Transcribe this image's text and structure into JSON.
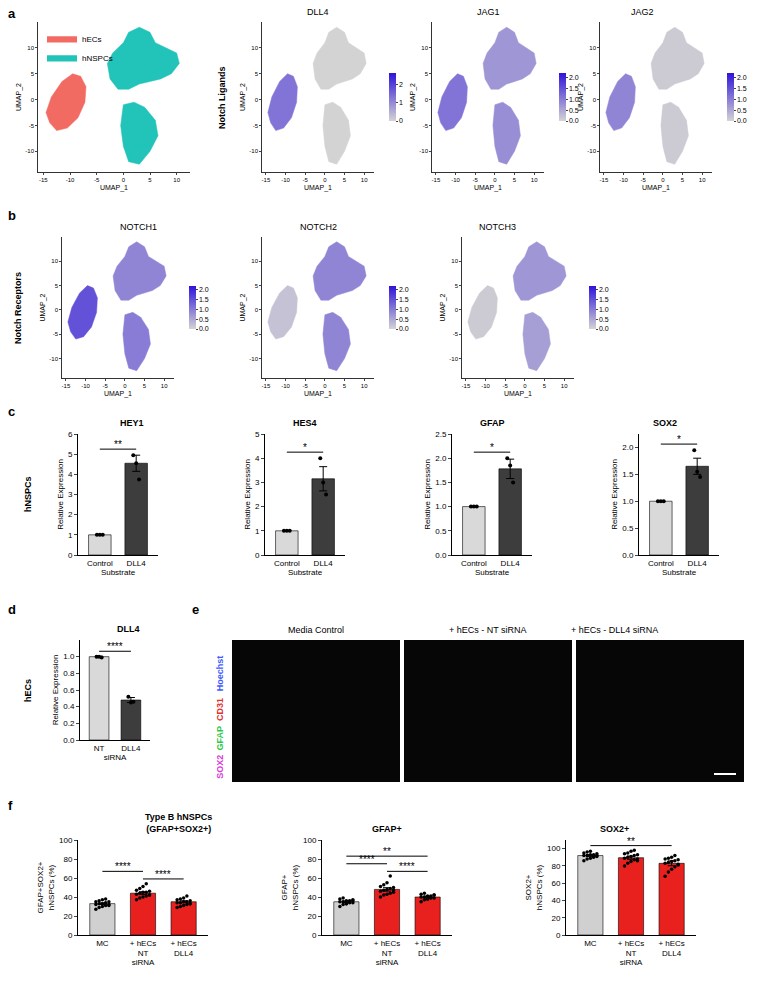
{
  "panels": [
    {
      "letter": "a",
      "label": "Notch Ligands"
    },
    {
      "letter": "b",
      "label": "Notch Receptors"
    },
    {
      "letter": "c",
      "label": "hNSPCs"
    },
    {
      "letter": "d",
      "label": "hECs"
    },
    {
      "letter": "e"
    },
    {
      "letter": "f"
    }
  ],
  "chart_data": [
    {
      "panel": "a",
      "type": "scatter",
      "x_label": "UMAP_1",
      "y_label": "UMAP_2",
      "xlim": [
        -16,
        12.5
      ],
      "xticks": [
        -15,
        -10,
        -5,
        0,
        5,
        10
      ],
      "ylim": [
        -14,
        15
      ],
      "yticks": [
        -10,
        -5,
        0,
        5,
        10
      ],
      "legend": "top-left",
      "series": [
        {
          "name": "hECs",
          "color": "#f26b63",
          "regions": [
            {
              "x": [
                -13.8,
                -12.5,
                -10.5,
                -8.5,
                -7.2,
                -7.0,
                -8.0,
                -9.5,
                -11.5,
                -13.5,
                -14.5,
                -13.8
              ],
              "y": [
                -4.5,
                -6.0,
                -5.5,
                -3.5,
                -0.5,
                2.5,
                4.5,
                5.0,
                3.5,
                0.5,
                -2.5,
                -4.5
              ]
            }
          ]
        },
        {
          "name": "hNSPCs",
          "color": "#22c3b8",
          "regions": [
            {
              "x": [
                -3,
                -2,
                0,
                1,
                3,
                5,
                6,
                8,
                10,
                10.5,
                9,
                7,
                5,
                3,
                1,
                -1,
                -2.5,
                -3
              ],
              "y": [
                7,
                9,
                11,
                13,
                14,
                13,
                11,
                10,
                9,
                7,
                5,
                4,
                3.5,
                3,
                2,
                2,
                4,
                7
              ]
            },
            {
              "x": [
                0,
                2,
                4,
                6,
                6.5,
                5,
                3,
                1,
                0,
                -0.5,
                0
              ],
              "y": [
                -1,
                -0.5,
                -1.5,
                -4,
                -7,
                -10,
                -12.5,
                -12,
                -9,
                -5,
                -1
              ]
            }
          ]
        }
      ]
    },
    {
      "panel": "a",
      "type": "feature",
      "title": "DLL4",
      "x_label": "UMAP_1",
      "y_label": "UMAP_2",
      "xlim": [
        -16,
        12.5
      ],
      "xticks": [
        -15,
        -10,
        -5,
        0,
        5,
        10
      ],
      "ylim": [
        -14,
        15
      ],
      "yticks": [
        -10,
        -5,
        0,
        5,
        10
      ],
      "values": [
        1.3,
        0,
        0
      ],
      "colorbar": {
        "range": [
          0,
          2.6
        ],
        "ticks": [
          0,
          1,
          2
        ]
      }
    },
    {
      "panel": "a",
      "type": "feature",
      "title": "JAG1",
      "x_label": "UMAP_1",
      "y_label": "UMAP_2",
      "xlim": [
        -16,
        12.5
      ],
      "xticks": [
        -15,
        -10,
        -5,
        0,
        5,
        10
      ],
      "ylim": [
        -14,
        15
      ],
      "yticks": [
        -10,
        -5,
        0,
        5,
        10
      ],
      "values": [
        1.1,
        0.7,
        0.8
      ],
      "colorbar": {
        "range": [
          0,
          2.2
        ],
        "ticks": [
          {
            "value": 0,
            "label": "0.0"
          },
          {
            "value": 0.5,
            "label": "0.5"
          },
          {
            "value": 1,
            "label": "1.0"
          },
          {
            "value": 1.5,
            "label": "1.5"
          },
          {
            "value": 2,
            "label": "2.0"
          }
        ]
      }
    },
    {
      "panel": "a",
      "type": "feature",
      "title": "JAG2",
      "x_label": "UMAP_1",
      "y_label": "UMAP_2",
      "xlim": [
        -16,
        12.5
      ],
      "xticks": [
        -15,
        -10,
        -5,
        0,
        5,
        10
      ],
      "ylim": [
        -14,
        15
      ],
      "yticks": [
        -10,
        -5,
        0,
        5,
        10
      ],
      "values": [
        0.9,
        0.1,
        0.1
      ],
      "colorbar": {
        "range": [
          0,
          2.2
        ],
        "ticks": [
          {
            "value": 0,
            "label": "0.0"
          },
          {
            "value": 0.5,
            "label": "0.5"
          },
          {
            "value": 1,
            "label": "1.0"
          },
          {
            "value": 1.5,
            "label": "1.5"
          },
          {
            "value": 2,
            "label": "2.0"
          }
        ]
      }
    },
    {
      "panel": "b",
      "type": "feature",
      "title": "NOTCH1",
      "x_label": "UMAP_1",
      "y_label": "UMAP_2",
      "xlim": [
        -16,
        12.5
      ],
      "xticks": [
        -15,
        -10,
        -5,
        0,
        5,
        10
      ],
      "ylim": [
        -14,
        15
      ],
      "yticks": [
        -10,
        -5,
        0,
        5,
        10
      ],
      "values": [
        1.5,
        0.9,
        1.0
      ],
      "colorbar": {
        "range": [
          0,
          2.2
        ],
        "ticks": [
          {
            "value": 0,
            "label": "0.0"
          },
          {
            "value": 0.5,
            "label": "0.5"
          },
          {
            "value": 1,
            "label": "1.0"
          },
          {
            "value": 1.5,
            "label": "1.5"
          },
          {
            "value": 2,
            "label": "2.0"
          }
        ]
      }
    },
    {
      "panel": "b",
      "type": "feature",
      "title": "NOTCH2",
      "x_label": "UMAP_1",
      "y_label": "UMAP_2",
      "xlim": [
        -16,
        12.5
      ],
      "xticks": [
        -15,
        -10,
        -5,
        0,
        5,
        10
      ],
      "ylim": [
        -14,
        15
      ],
      "yticks": [
        -10,
        -5,
        0,
        5,
        10
      ],
      "values": [
        0.2,
        0.9,
        0.9
      ],
      "colorbar": {
        "range": [
          0,
          2.2
        ],
        "ticks": [
          {
            "value": 0,
            "label": "0.0"
          },
          {
            "value": 0.5,
            "label": "0.5"
          },
          {
            "value": 1,
            "label": "1.0"
          },
          {
            "value": 1.5,
            "label": "1.5"
          },
          {
            "value": 2,
            "label": "2.0"
          }
        ]
      }
    },
    {
      "panel": "b",
      "type": "feature",
      "title": "NOTCH3",
      "x_label": "UMAP_1",
      "y_label": "UMAP_2",
      "xlim": [
        -16,
        12.5
      ],
      "xticks": [
        -15,
        -10,
        -5,
        0,
        5,
        10
      ],
      "ylim": [
        -14,
        15
      ],
      "yticks": [
        -10,
        -5,
        0,
        5,
        10
      ],
      "values": [
        0.1,
        0.7,
        0.6
      ],
      "colorbar": {
        "range": [
          0,
          2.2
        ],
        "ticks": [
          {
            "value": 0,
            "label": "0.0"
          },
          {
            "value": 0.5,
            "label": "0.5"
          },
          {
            "value": 1,
            "label": "1.0"
          },
          {
            "value": 1.5,
            "label": "1.5"
          },
          {
            "value": 2,
            "label": "2.0"
          }
        ]
      }
    },
    {
      "panel": "c",
      "type": "bar",
      "title": "HEY1",
      "x_label": "Substrate",
      "y_label": "Relative Expression",
      "categories": [
        "Control",
        "DLL4"
      ],
      "colors": [
        "#d9d9d9",
        "#3d3d3d"
      ],
      "values": [
        1,
        4.55
      ],
      "errors": [
        0,
        0.4
      ],
      "points": [
        [
          1,
          1,
          1
        ],
        [
          4.95,
          4.55,
          3.75
        ]
      ],
      "ylim": [
        0,
        6
      ],
      "yticks": [
        0,
        1,
        2,
        3,
        4,
        5,
        6
      ],
      "significance": [
        {
          "groups": [
            "Control",
            "DLL4"
          ],
          "label": "**"
        }
      ]
    },
    {
      "panel": "c",
      "type": "bar",
      "title": "HES4",
      "x_label": "Substrate",
      "y_label": "Relative Expression",
      "categories": [
        "Control",
        "DLL4"
      ],
      "colors": [
        "#d9d9d9",
        "#3d3d3d"
      ],
      "values": [
        1,
        3.15
      ],
      "errors": [
        0,
        0.5
      ],
      "points": [
        [
          1,
          1,
          1
        ],
        [
          4.0,
          3.0,
          2.5
        ]
      ],
      "ylim": [
        0,
        5
      ],
      "yticks": [
        0,
        1,
        2,
        3,
        4,
        5
      ],
      "significance": [
        {
          "groups": [
            "Control",
            "DLL4"
          ],
          "label": "*"
        }
      ]
    },
    {
      "panel": "c",
      "type": "bar",
      "title": "GFAP",
      "x_label": "Substrate",
      "y_label": "Relative Expression",
      "categories": [
        "Control",
        "DLL4"
      ],
      "colors": [
        "#d9d9d9",
        "#3d3d3d"
      ],
      "values": [
        1,
        1.78
      ],
      "errors": [
        0,
        0.2
      ],
      "points": [
        [
          1,
          1,
          1
        ],
        [
          2.0,
          1.85,
          1.5
        ]
      ],
      "ylim": [
        0,
        2.5
      ],
      "yticks": [
        {
          "value": 0,
          "label": "0.0"
        },
        {
          "value": 0.5,
          "label": "0.5"
        },
        {
          "value": 1,
          "label": "1.0"
        },
        {
          "value": 1.5,
          "label": "1.5"
        },
        {
          "value": 2,
          "label": "2.0"
        },
        {
          "value": 2.5,
          "label": "2.5"
        }
      ],
      "significance": [
        {
          "groups": [
            "Control",
            "DLL4"
          ],
          "label": "*"
        }
      ]
    },
    {
      "panel": "c",
      "type": "bar",
      "title": "SOX2",
      "x_label": "Substrate",
      "y_label": "Relative Expression",
      "categories": [
        "Control",
        "DLL4"
      ],
      "colors": [
        "#d9d9d9",
        "#3d3d3d"
      ],
      "values": [
        1,
        1.65
      ],
      "errors": [
        0,
        0.15
      ],
      "points": [
        [
          1,
          1,
          1
        ],
        [
          1.95,
          1.55,
          1.45
        ]
      ],
      "ylim": [
        0,
        2.25
      ],
      "yticks": [
        {
          "value": 0,
          "label": "0.0"
        },
        {
          "value": 0.5,
          "label": "0.5"
        },
        {
          "value": 1,
          "label": "1.0"
        },
        {
          "value": 1.5,
          "label": "1.5"
        },
        {
          "value": 2,
          "label": "2.0"
        }
      ],
      "significance": [
        {
          "groups": [
            "Control",
            "DLL4"
          ],
          "label": "*"
        }
      ]
    },
    {
      "panel": "d",
      "type": "bar",
      "title": "DLL4",
      "x_label": "siRNA",
      "y_label": "Relative Expression",
      "categories": [
        "NT",
        "DLL4"
      ],
      "colors": [
        "#d9d9d9",
        "#3d3d3d"
      ],
      "values": [
        1.0,
        0.48
      ],
      "errors": [
        0.005,
        0.03
      ],
      "points": [
        [
          1.0,
          1.0,
          0.99
        ],
        [
          0.52,
          0.45,
          0.46
        ]
      ],
      "ylim": [
        0,
        1.2
      ],
      "yticks": [
        {
          "value": 0,
          "label": "0.0"
        },
        {
          "value": 0.2,
          "label": "0.2"
        },
        {
          "value": 0.4,
          "label": "0.4"
        },
        {
          "value": 0.6,
          "label": "0.6"
        },
        {
          "value": 0.8,
          "label": "0.8"
        },
        {
          "value": 1,
          "label": "1.0"
        }
      ],
      "significance": [
        {
          "groups": [
            "NT",
            "DLL4"
          ],
          "label": "****"
        }
      ]
    },
    {
      "panel": "f",
      "type": "bar",
      "title": "Type B hNSPCs\n(GFAP+SOX2+)",
      "x_label": "siRNA",
      "y_label": "GFAP+SOX2+\nhNSPCs (%)",
      "categories": [
        "MC",
        "+ hECs\nNT",
        "+ hECs\nDLL4"
      ],
      "colors": [
        "#d0d0d0",
        "#e8211f",
        "#e8211f"
      ],
      "values": [
        33,
        44,
        35
      ],
      "errors": [
        0.8,
        1.5,
        1.0
      ],
      "points": [
        [
          27,
          29,
          30,
          31,
          31,
          32,
          33,
          33,
          34,
          35,
          35,
          36,
          37,
          38,
          32
        ],
        [
          37,
          39,
          40,
          41,
          42,
          43,
          44,
          45,
          45,
          46,
          47,
          49,
          51,
          54,
          42
        ],
        [
          29,
          30,
          31,
          32,
          33,
          34,
          34,
          35,
          35,
          36,
          37,
          38,
          39,
          41,
          33
        ]
      ],
      "ylim": [
        0,
        100
      ],
      "yticks": [
        0,
        20,
        40,
        60,
        80,
        100
      ],
      "significance": [
        {
          "groups": [
            "+ hECs\nNT",
            "+ hECs\nDLL4"
          ],
          "label": "****"
        },
        {
          "groups": [
            "MC",
            "+ hECs\nNT"
          ],
          "label": "****"
        }
      ]
    },
    {
      "panel": "f",
      "type": "bar",
      "title": "GFAP+",
      "x_label": "siRNA",
      "y_label": "GFAP+\nhNSPCs (%)",
      "categories": [
        "MC",
        "+ hECs\nNT",
        "+ hECs\nDLL4"
      ],
      "colors": [
        "#d0d0d0",
        "#e8211f",
        "#e8211f"
      ],
      "values": [
        35,
        48,
        40
      ],
      "errors": [
        0.8,
        1.8,
        0.9
      ],
      "points": [
        [
          30,
          32,
          33,
          34,
          34,
          35,
          35,
          36,
          36,
          37,
          38,
          39,
          33,
          35,
          36
        ],
        [
          40,
          42,
          43,
          44,
          45,
          46,
          47,
          48,
          49,
          50,
          51,
          53,
          55,
          62,
          47
        ],
        [
          35,
          37,
          38,
          39,
          39,
          40,
          40,
          41,
          41,
          42,
          43,
          44,
          38,
          40,
          42
        ]
      ],
      "ylim": [
        0,
        100
      ],
      "yticks": [
        0,
        20,
        40,
        60,
        80,
        100
      ],
      "significance": [
        {
          "groups": [
            "+ hECs\nNT",
            "+ hECs\nDLL4"
          ],
          "label": "****"
        },
        {
          "groups": [
            "MC",
            "+ hECs\nNT"
          ],
          "label": "****"
        },
        {
          "groups": [
            "MC",
            "+ hECs\nDLL4"
          ],
          "label": "**"
        }
      ]
    },
    {
      "panel": "f",
      "type": "bar",
      "title": "SOX2+",
      "x_label": "siRNA",
      "y_label": "SOX2+\nhNSPCs (%)",
      "categories": [
        "MC",
        "+ hECs\nNT",
        "+ hECs\nDLL4"
      ],
      "colors": [
        "#d0d0d0",
        "#e8211f",
        "#e8211f"
      ],
      "values": [
        92,
        89.5,
        83
      ],
      "errors": [
        1.0,
        1.8,
        2.8
      ],
      "points": [
        [
          86,
          88,
          89,
          90,
          91,
          92,
          92,
          93,
          93,
          94,
          95,
          96,
          97,
          91,
          92
        ],
        [
          80,
          83,
          85,
          87,
          88,
          89,
          90,
          91,
          92,
          93,
          94,
          95,
          97,
          98,
          86
        ],
        [
          68,
          73,
          76,
          79,
          81,
          83,
          84,
          85,
          86,
          87,
          88,
          89,
          90,
          92,
          82
        ]
      ],
      "ylim": [
        0,
        110
      ],
      "yticks": [
        0,
        20,
        40,
        60,
        80,
        100
      ],
      "significance": [
        {
          "groups": [
            "MC",
            "+ hECs\nDLL4"
          ],
          "label": "**"
        }
      ]
    }
  ],
  "images": {
    "panel": "e",
    "titles": [
      "Media Control",
      "+ hECs - NT siRNA",
      "+ hECs - DLL4 siRNA"
    ],
    "channels": [
      {
        "name": "Hoechst",
        "color": "#3f5bff"
      },
      {
        "name": "CD31",
        "color": "#e0302a"
      },
      {
        "name": "GFAP",
        "color": "#2fc84a"
      },
      {
        "name": "SOX2",
        "color": "#d83cd8"
      }
    ]
  }
}
